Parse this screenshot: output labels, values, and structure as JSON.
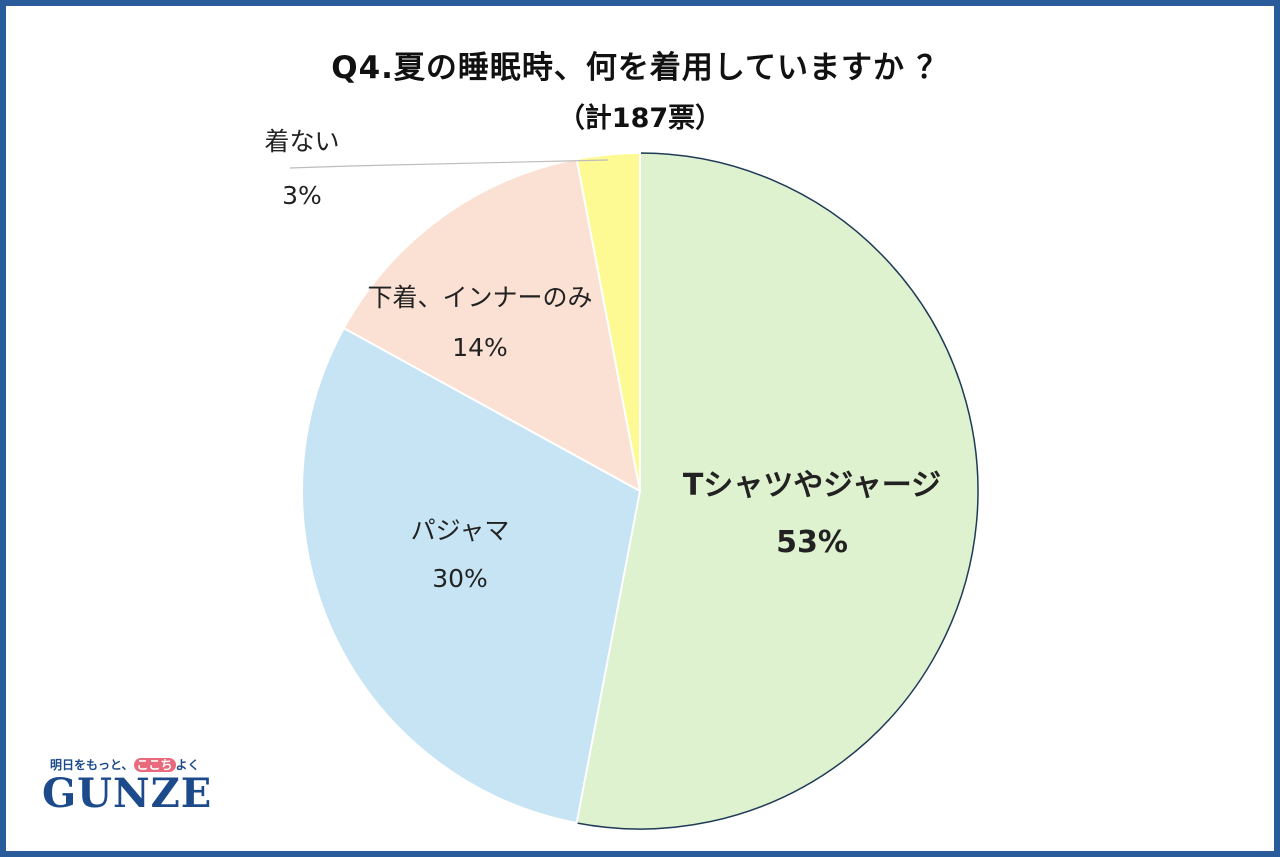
{
  "chart_data": {
    "type": "pie",
    "title": "Q4.夏の睡眠時、何を着用していますか ？",
    "subtitle": "（計187票）",
    "start_angle_deg": 0,
    "direction": "clockwise",
    "slices": [
      {
        "label": "Tシャツやジャージ",
        "value": 53,
        "value_label": "53%",
        "color": "#dff2d0",
        "bold": true
      },
      {
        "label": "パジャマ",
        "value": 30,
        "value_label": "30%",
        "color": "#c6e4f4",
        "bold": false
      },
      {
        "label": "下着、インナーのみ",
        "value": 14,
        "value_label": "14%",
        "color": "#fbe1d4",
        "bold": false
      },
      {
        "label": "着ない",
        "value": 3,
        "value_label": "3%",
        "color": "#fdfa94",
        "bold": false
      }
    ],
    "border_color": "#2a5b9a"
  },
  "logo": {
    "tagline_start": "明日をもっと、",
    "tagline_heart": "ここち",
    "tagline_end": "よく",
    "wordmark": "GUNZE"
  }
}
